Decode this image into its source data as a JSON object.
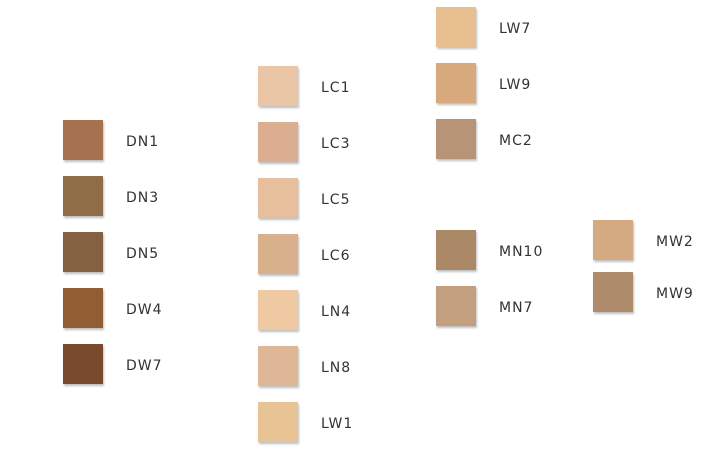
{
  "columns": [
    {
      "swatches": [
        {
          "label": "DN1",
          "color": "#a5714f"
        },
        {
          "label": "DN3",
          "color": "#8e6d47"
        },
        {
          "label": "DN5",
          "color": "#846241"
        },
        {
          "label": "DW4",
          "color": "#935d33"
        },
        {
          "label": "DW7",
          "color": "#7a4a2d"
        }
      ]
    },
    {
      "swatches": [
        {
          "label": "LC1",
          "color": "#eac6a6"
        },
        {
          "label": "LC3",
          "color": "#dbad91"
        },
        {
          "label": "LC5",
          "color": "#e8bf9c"
        },
        {
          "label": "LC6",
          "color": "#d8b08b"
        },
        {
          "label": "LN4",
          "color": "#eec9a1"
        },
        {
          "label": "LN8",
          "color": "#ddb796"
        },
        {
          "label": "LW1",
          "color": "#e8c495"
        }
      ]
    },
    {
      "swatches": [
        {
          "label": "LW7",
          "color": "#e8c08f"
        },
        {
          "label": "LW9",
          "color": "#d8a97c"
        },
        {
          "label": "MC2",
          "color": "#b89477"
        },
        {
          "label": "MN10",
          "color": "#ab8866"
        },
        {
          "label": "MN7",
          "color": "#c49f7f"
        }
      ]
    },
    {
      "swatches": [
        {
          "label": "MW2",
          "color": "#d3aa82"
        },
        {
          "label": "MW9",
          "color": "#ad8b6b"
        }
      ]
    }
  ]
}
